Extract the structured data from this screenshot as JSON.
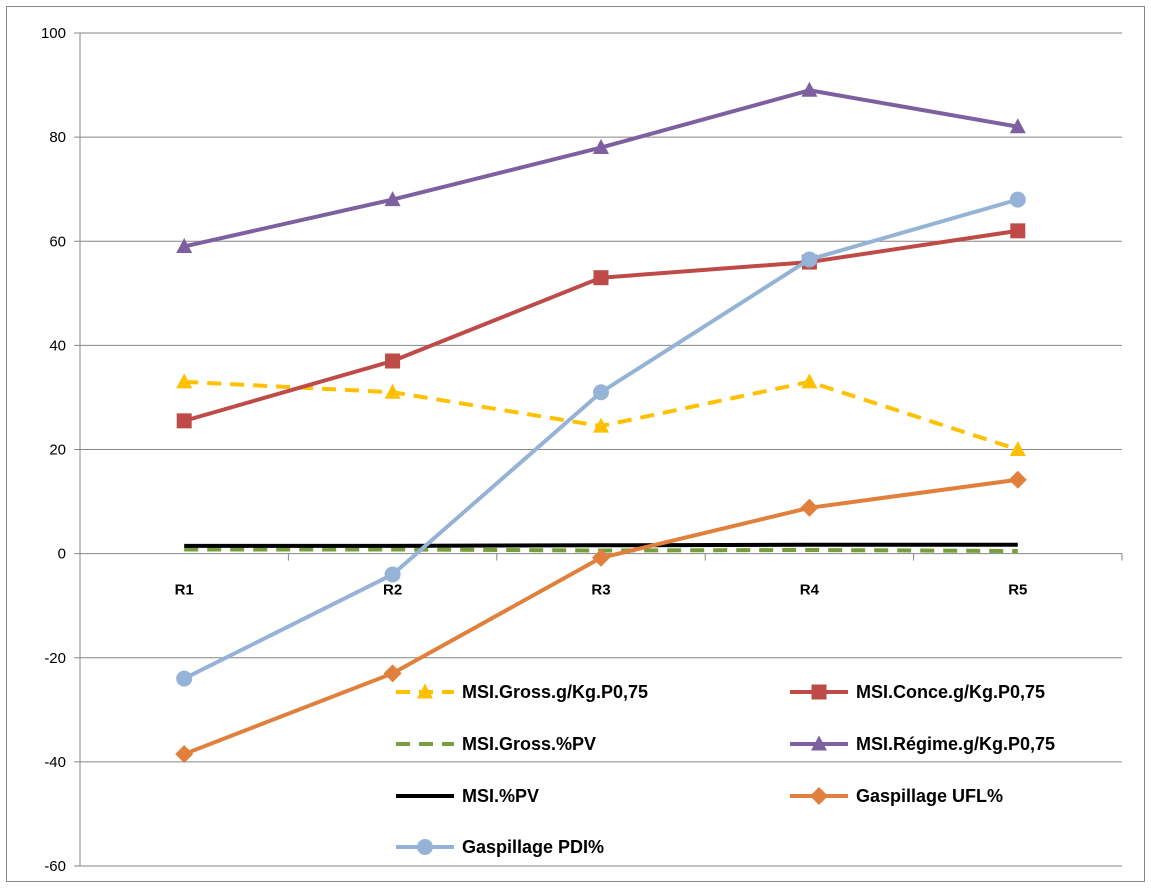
{
  "chart_data": {
    "type": "line",
    "title": "",
    "xlabel": "",
    "ylabel": "",
    "categories": [
      "R1",
      "R2",
      "R3",
      "R4",
      "R5"
    ],
    "ylim": [
      -60,
      100
    ],
    "y_ticks": [
      "100",
      "80",
      "60",
      "40",
      "20",
      "0",
      "-20",
      "-40",
      "-60"
    ],
    "grid": "horizontal",
    "legend_position": "bottom-right",
    "series": [
      {
        "name": "MSI.Gross.g/Kg.P0,75",
        "values": [
          33,
          31,
          24.5,
          33,
          20
        ],
        "color": "#ffc000",
        "dash": "dashed",
        "marker": "triangle"
      },
      {
        "name": "MSI.Conce.g/Kg.P0,75",
        "values": [
          25.5,
          37,
          53,
          56,
          62
        ],
        "color": "#be4b48",
        "dash": "solid",
        "marker": "square"
      },
      {
        "name": "MSI.Gross.%PV",
        "values": [
          0.8,
          0.8,
          0.6,
          0.7,
          0.5
        ],
        "color": "#77a03c",
        "dash": "dashed",
        "marker": "none"
      },
      {
        "name": "MSI.Régime.g/Kg.P0,75",
        "values": [
          59,
          68,
          78,
          89,
          82
        ],
        "color": "#7d60a0",
        "dash": "solid",
        "marker": "triangle"
      },
      {
        "name": "MSI.%PV",
        "values": [
          1.5,
          1.5,
          1.6,
          1.7,
          1.7
        ],
        "color": "#000000",
        "dash": "solid",
        "marker": "none"
      },
      {
        "name": "Gaspillage UFL%",
        "values": [
          -38.5,
          -23,
          -0.8,
          8.8,
          14.2
        ],
        "color": "#e0803c",
        "dash": "solid",
        "marker": "diamond"
      },
      {
        "name": "Gaspillage PDI%",
        "values": [
          -24,
          -4,
          31,
          56.5,
          68
        ],
        "color": "#95b3d7",
        "dash": "solid",
        "marker": "circle"
      }
    ]
  }
}
